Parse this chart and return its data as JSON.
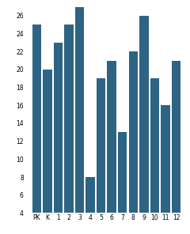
{
  "categories": [
    "PK",
    "K",
    "1",
    "2",
    "3",
    "4",
    "5",
    "6",
    "7",
    "8",
    "9",
    "10",
    "11",
    "12"
  ],
  "values": [
    25,
    20,
    23,
    25,
    27,
    8,
    19,
    21,
    13,
    22,
    26,
    19,
    16,
    21
  ],
  "bar_color": "#2d6484",
  "ylim": [
    4,
    27.5
  ],
  "yticks": [
    4,
    6,
    8,
    10,
    12,
    14,
    16,
    18,
    20,
    22,
    24,
    26
  ],
  "background_color": "#ffffff",
  "tick_fontsize": 5.5,
  "bar_width": 0.85
}
